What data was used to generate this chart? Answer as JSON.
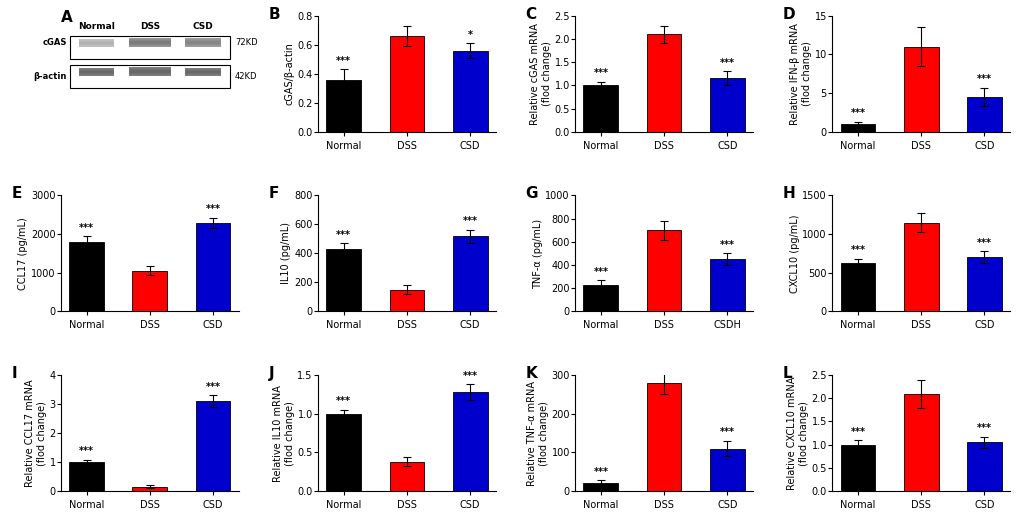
{
  "panel_A": {
    "label": "A",
    "wb_image": true,
    "groups": [
      "Normal",
      "DSS",
      "CSD"
    ],
    "bands": [
      "cGAS",
      "β-actin"
    ],
    "kd": [
      "72KD",
      "42KD"
    ]
  },
  "panel_B": {
    "label": "B",
    "ylabel": "cGAS/β-actin",
    "groups": [
      "Normal",
      "DSS",
      "CSD"
    ],
    "values": [
      0.36,
      0.66,
      0.56
    ],
    "errors": [
      0.07,
      0.07,
      0.05
    ],
    "colors": [
      "#000000",
      "#ff0000",
      "#0000cc"
    ],
    "stars": [
      "***",
      "",
      "*"
    ],
    "ylim": [
      0,
      0.8
    ],
    "yticks": [
      0.0,
      0.2,
      0.4,
      0.6,
      0.8
    ]
  },
  "panel_C": {
    "label": "C",
    "ylabel": "Relative cGAS mRNA\n(flod change)",
    "groups": [
      "Normal",
      "DSS",
      "CSD"
    ],
    "values": [
      1.0,
      2.1,
      1.15
    ],
    "errors": [
      0.08,
      0.18,
      0.15
    ],
    "colors": [
      "#000000",
      "#ff0000",
      "#0000cc"
    ],
    "stars": [
      "***",
      "",
      "***"
    ],
    "ylim": [
      0,
      2.5
    ],
    "yticks": [
      0.0,
      0.5,
      1.0,
      1.5,
      2.0,
      2.5
    ]
  },
  "panel_D": {
    "label": "D",
    "ylabel": "Relative IFN-β mRNA\n(flod change)",
    "groups": [
      "Normal",
      "DSS",
      "CSD"
    ],
    "values": [
      1.0,
      11.0,
      4.5
    ],
    "errors": [
      0.3,
      2.5,
      1.2
    ],
    "colors": [
      "#000000",
      "#ff0000",
      "#0000cc"
    ],
    "stars": [
      "***",
      "",
      "***"
    ],
    "ylim": [
      0,
      15
    ],
    "yticks": [
      0,
      5,
      10,
      15
    ]
  },
  "panel_E": {
    "label": "E",
    "ylabel": "CCL17 (pg/mL)",
    "groups": [
      "Normal",
      "DSS",
      "CSD"
    ],
    "values": [
      1800,
      1050,
      2300
    ],
    "errors": [
      150,
      120,
      130
    ],
    "colors": [
      "#000000",
      "#ff0000",
      "#0000cc"
    ],
    "stars": [
      "***",
      "",
      "***"
    ],
    "ylim": [
      0,
      3000
    ],
    "yticks": [
      0,
      1000,
      2000,
      3000
    ]
  },
  "panel_F": {
    "label": "F",
    "ylabel": "IL10 (pg/mL)",
    "groups": [
      "Normal",
      "DSS",
      "CSD"
    ],
    "values": [
      430,
      150,
      520
    ],
    "errors": [
      40,
      30,
      45
    ],
    "colors": [
      "#000000",
      "#ff0000",
      "#0000cc"
    ],
    "stars": [
      "***",
      "",
      "***"
    ],
    "ylim": [
      0,
      800
    ],
    "yticks": [
      0,
      200,
      400,
      600,
      800
    ]
  },
  "panel_G": {
    "label": "G",
    "ylabel": "TNF-α (pg/mL)",
    "groups": [
      "Normal",
      "DSS",
      "CSDH"
    ],
    "values": [
      230,
      700,
      450
    ],
    "errors": [
      40,
      80,
      50
    ],
    "colors": [
      "#000000",
      "#ff0000",
      "#0000cc"
    ],
    "stars": [
      "***",
      "",
      "***"
    ],
    "ylim": [
      0,
      1000
    ],
    "yticks": [
      0,
      200,
      400,
      600,
      800,
      1000
    ]
  },
  "panel_H": {
    "label": "H",
    "ylabel": "CXCL10 (pg/mL)",
    "groups": [
      "Normal",
      "DSS",
      "CSD"
    ],
    "values": [
      620,
      1150,
      700
    ],
    "errors": [
      60,
      120,
      80
    ],
    "colors": [
      "#000000",
      "#ff0000",
      "#0000cc"
    ],
    "stars": [
      "***",
      "",
      "***"
    ],
    "ylim": [
      0,
      1500
    ],
    "yticks": [
      0,
      500,
      1000,
      1500
    ]
  },
  "panel_I": {
    "label": "I",
    "ylabel": "Relative CCL17 mRNA\n(flod change)",
    "groups": [
      "Normal",
      "DSS",
      "CSD"
    ],
    "values": [
      1.0,
      0.15,
      3.1
    ],
    "errors": [
      0.08,
      0.05,
      0.2
    ],
    "colors": [
      "#000000",
      "#ff0000",
      "#0000cc"
    ],
    "stars": [
      "***",
      "",
      "***"
    ],
    "ylim": [
      0,
      4
    ],
    "yticks": [
      0,
      1,
      2,
      3,
      4
    ]
  },
  "panel_J": {
    "label": "J",
    "ylabel": "Relative IL10 mRNA\n(flod change)",
    "groups": [
      "Normal",
      "DSS",
      "CSD"
    ],
    "values": [
      1.0,
      0.38,
      1.28
    ],
    "errors": [
      0.05,
      0.06,
      0.1
    ],
    "colors": [
      "#000000",
      "#ff0000",
      "#0000cc"
    ],
    "stars": [
      "***",
      "",
      "***"
    ],
    "ylim": [
      0,
      1.5
    ],
    "yticks": [
      0.0,
      0.5,
      1.0,
      1.5
    ]
  },
  "panel_K": {
    "label": "K",
    "ylabel": "Relative TNF-α mRNA\n(flod change)",
    "groups": [
      "Normal",
      "DSS",
      "CSD"
    ],
    "values": [
      20,
      280,
      110
    ],
    "errors": [
      8,
      30,
      20
    ],
    "colors": [
      "#000000",
      "#ff0000",
      "#0000cc"
    ],
    "stars": [
      "***",
      "",
      "***"
    ],
    "ylim": [
      0,
      300
    ],
    "yticks": [
      0,
      100,
      200,
      300
    ]
  },
  "panel_L": {
    "label": "L",
    "ylabel": "Relative CXCL10 mRNA\n(flod change)",
    "groups": [
      "Normal",
      "DSS",
      "CSD"
    ],
    "values": [
      1.0,
      2.1,
      1.05
    ],
    "errors": [
      0.1,
      0.3,
      0.12
    ],
    "colors": [
      "#000000",
      "#ff0000",
      "#0000cc"
    ],
    "stars": [
      "***",
      "",
      "***"
    ],
    "ylim": [
      0,
      2.5
    ],
    "yticks": [
      0.0,
      0.5,
      1.0,
      1.5,
      2.0,
      2.5
    ]
  },
  "bar_width": 0.55,
  "fontsize_label": 7,
  "fontsize_tick": 7,
  "fontsize_panel": 11,
  "star_fontsize": 7,
  "background_color": "#ffffff"
}
